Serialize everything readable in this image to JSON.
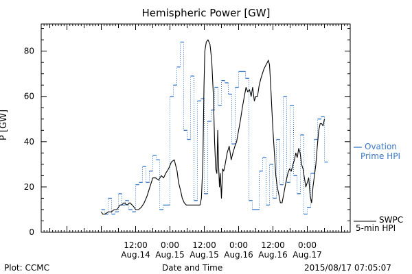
{
  "chart_data": {
    "type": "line",
    "title": "Hemispheric Power [GW]",
    "ylabel": "P [GW]",
    "xlabel": "Date and Time",
    "ylim": [
      0,
      92
    ],
    "yticks": [
      0,
      20,
      40,
      60,
      80
    ],
    "xlim_hours": [
      -21,
      87
    ],
    "xticks": [
      {
        "t": 12,
        "time": "12:00",
        "date": "Aug.14"
      },
      {
        "t": 24,
        "time": "0:00",
        "date": "Aug.15"
      },
      {
        "t": 36,
        "time": "12:00",
        "date": "Aug.15"
      },
      {
        "t": 48,
        "time": "0:00",
        "date": "Aug.16"
      },
      {
        "t": 60,
        "time": "12:00",
        "date": "Aug.16"
      },
      {
        "t": 72,
        "time": "0:00",
        "date": "Aug.17"
      }
    ],
    "series": [
      {
        "name": "SWPC 5-min HPI",
        "color": "#000000",
        "style": "solid",
        "x": [
          0.0,
          0.5,
          1.2,
          2.5,
          3.5,
          4.5,
          5.5,
          6.5,
          7.0,
          8.0,
          9.0,
          10.0,
          10.8,
          11.5,
          12.0,
          13.0,
          14.0,
          15.0,
          16.0,
          17.0,
          18.0,
          19.0,
          20.0,
          21.0,
          21.8,
          22.5,
          23.5,
          24.5,
          25.5,
          26.5,
          27.0,
          27.8,
          28.3,
          29.0,
          29.7,
          30.5,
          31.5,
          32.5,
          33.5,
          34.5,
          35.0,
          35.5,
          35.9,
          36.2,
          36.7,
          37.3,
          38.0,
          38.6,
          39.2,
          39.6,
          40.0,
          40.4,
          40.7,
          41.0,
          41.3,
          41.6,
          42.0,
          42.4,
          42.8,
          43.3,
          44.0,
          44.7,
          45.4,
          46.0,
          46.7,
          47.3,
          48.0,
          48.7,
          49.3,
          50.0,
          50.6,
          51.2,
          51.8,
          52.4,
          52.9,
          53.5,
          54.0,
          54.6,
          55.2,
          55.8,
          56.3,
          56.8,
          57.2,
          57.6,
          58.0,
          58.4,
          58.8,
          59.2,
          59.6,
          60.0,
          60.5,
          61.0,
          61.5,
          62.0,
          62.6,
          63.2,
          63.8,
          64.5,
          65.2,
          65.8,
          66.4,
          67.0,
          67.5,
          68.0,
          68.5,
          69.0,
          69.5,
          70.0,
          70.5,
          71.0,
          71.5,
          72.0,
          72.5,
          73.0,
          73.5,
          74.0,
          74.5,
          75.0,
          75.5,
          76.0,
          76.5,
          77.0,
          77.5,
          78.0
        ],
        "y": [
          9,
          8,
          8,
          9,
          9,
          10,
          10,
          12,
          12,
          13,
          12,
          13,
          12,
          11,
          10,
          10,
          11,
          13,
          16,
          20,
          24,
          24,
          23,
          25,
          24,
          26,
          28,
          31,
          32,
          27,
          22,
          18,
          15,
          13,
          12,
          12,
          12,
          12,
          12,
          12,
          15,
          30,
          65,
          80,
          84,
          85,
          83,
          76,
          60,
          40,
          28,
          26,
          45,
          30,
          20,
          26,
          15,
          28,
          27,
          30,
          35,
          38,
          32,
          35,
          38,
          40,
          45,
          50,
          55,
          60,
          64,
          62,
          63,
          60,
          64,
          58,
          60,
          60,
          65,
          68,
          70,
          72,
          73,
          74,
          75,
          76,
          74,
          65,
          55,
          45,
          35,
          25,
          20,
          17,
          13,
          13,
          17,
          22,
          26,
          28,
          27,
          30,
          32,
          35,
          33,
          37,
          35,
          30,
          28,
          24,
          20,
          22,
          24,
          16,
          13,
          20,
          25,
          30,
          38,
          45,
          48,
          48,
          47,
          50
        ]
      },
      {
        "name": "Ovation Prime HPI",
        "color": "#3a78c8",
        "style": "dotted-step",
        "x": [
          0.0,
          1.2,
          2.4,
          3.6,
          4.8,
          6.0,
          7.2,
          8.4,
          9.6,
          10.8,
          12.0,
          13.2,
          14.4,
          15.6,
          16.8,
          18.0,
          19.2,
          20.4,
          21.6,
          22.8,
          24.0,
          25.2,
          26.4,
          27.6,
          28.8,
          30.0,
          31.2,
          32.4,
          33.6,
          34.8,
          36.0,
          37.2,
          38.4,
          39.6,
          40.8,
          42.0,
          43.2,
          44.4,
          45.6,
          46.8,
          48.0,
          49.2,
          50.4,
          51.6,
          52.8,
          54.0,
          55.2,
          56.4,
          57.6,
          58.8,
          60.0,
          61.2,
          62.4,
          63.6,
          64.8,
          66.0,
          67.2,
          68.4,
          69.6,
          70.8,
          72.0,
          73.2,
          74.4,
          75.6,
          76.8,
          78.0
        ],
        "y": [
          10,
          8,
          15,
          8,
          9,
          17,
          12,
          14,
          10,
          9,
          21,
          22,
          29,
          22,
          27,
          34,
          32,
          10,
          12,
          12,
          60,
          65,
          73,
          84,
          45,
          41,
          69,
          14,
          58,
          59,
          17,
          49,
          54,
          64,
          56,
          67,
          66,
          61,
          39,
          64,
          71,
          71,
          68,
          14,
          10,
          10,
          27,
          33,
          12,
          30,
          15,
          41,
          21,
          60,
          22,
          56,
          25,
          17,
          43,
          8,
          11,
          26,
          41,
          50,
          51,
          31
        ]
      }
    ],
    "legend": [
      {
        "label": "SWPC",
        "label2": "5-min HPI",
        "color": "#000000"
      },
      {
        "label": "Ovation",
        "label2": "Prime HPI",
        "color": "#3a78c8"
      }
    ],
    "legend_position": "right"
  },
  "footer": {
    "left": "Plot: CCMC",
    "right": "2015/08/17 07:05:07"
  }
}
